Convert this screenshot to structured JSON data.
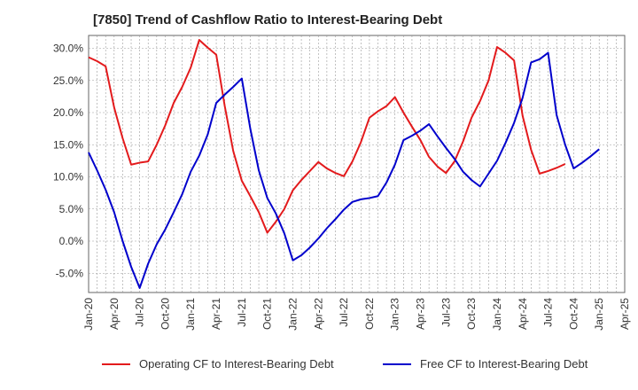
{
  "chart_data": {
    "type": "line",
    "title": "[7850]  Trend of Cashflow Ratio to Interest-Bearing Debt",
    "xlabel": "",
    "ylabel": "",
    "x_ticks": [
      "Jan-20",
      "Apr-20",
      "Jul-20",
      "Oct-20",
      "Jan-21",
      "Apr-21",
      "Jul-21",
      "Oct-21",
      "Jan-22",
      "Apr-22",
      "Jul-22",
      "Oct-22",
      "Jan-23",
      "Apr-23",
      "Jul-23",
      "Oct-23",
      "Jan-24",
      "Apr-24",
      "Jul-24",
      "Oct-24",
      "Jan-25",
      "Apr-25"
    ],
    "y_ticks": [
      -5,
      0,
      5,
      10,
      15,
      20,
      25,
      30
    ],
    "y_tick_labels": [
      "-5.0%",
      "0.0%",
      "5.0%",
      "10.0%",
      "15.0%",
      "20.0%",
      "25.0%",
      "30.0%"
    ],
    "ylim": [
      -8,
      32
    ],
    "grid": true,
    "legend_position": "bottom",
    "series": [
      {
        "name": "Operating CF to Interest-Bearing Debt",
        "color": "#e31a1c",
        "values": [
          28.6,
          28.0,
          27.2,
          20.8,
          16.0,
          11.9,
          12.2,
          12.4,
          15.0,
          18.0,
          21.5,
          24.0,
          27.0,
          31.3,
          30.1,
          29.0,
          21.0,
          14.0,
          9.4,
          7.0,
          4.5,
          1.3,
          3.0,
          5.0,
          7.9,
          9.5,
          10.9,
          12.3,
          11.3,
          10.6,
          10.1,
          12.4,
          15.4,
          19.2,
          20.2,
          21.0,
          22.4,
          20.0,
          17.8,
          15.7,
          13.1,
          11.6,
          10.6,
          12.4,
          15.5,
          19.2,
          21.8,
          25.0,
          30.2,
          29.3,
          28.1,
          19.5,
          14.2,
          10.5,
          10.9,
          11.4,
          12.0
        ]
      },
      {
        "name": "Free CF to Interest-Bearing Debt",
        "color": "#0000cc",
        "values": [
          13.8,
          11.0,
          8.0,
          4.5,
          0.0,
          -4.0,
          -7.3,
          -3.5,
          -0.5,
          1.8,
          4.5,
          7.3,
          10.8,
          13.3,
          16.6,
          21.5,
          22.8,
          24.0,
          25.3,
          17.5,
          11.0,
          6.7,
          4.3,
          1.2,
          -3.0,
          -2.2,
          -1.0,
          0.4,
          2.0,
          3.4,
          4.9,
          6.1,
          6.5,
          6.7,
          7.0,
          9.1,
          11.9,
          15.7,
          16.4,
          17.2,
          18.2,
          16.3,
          14.5,
          12.8,
          10.8,
          9.5,
          8.5,
          10.5,
          12.5,
          15.3,
          18.4,
          22.3,
          27.8,
          28.3,
          29.3,
          19.6,
          15.0,
          11.3,
          12.2,
          13.2,
          14.3
        ]
      }
    ],
    "x_start": "Jan-20",
    "x_step_months": 1
  }
}
